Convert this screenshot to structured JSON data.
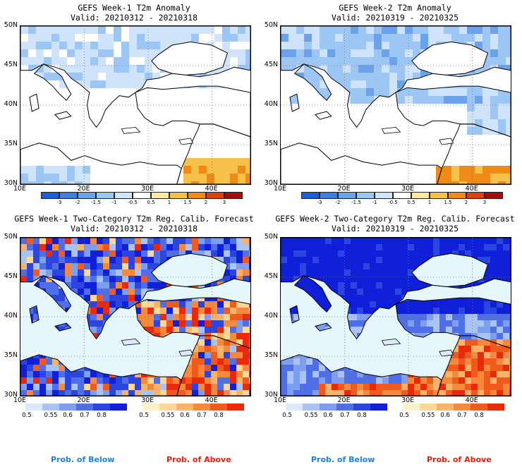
{
  "panels": [
    {
      "title": "GEFS Week-1 T2m Anomaly",
      "valid": "Valid: 20210312 - 20210318",
      "type": "anomaly"
    },
    {
      "title": "GEFS Week-2 T2m Anomaly",
      "valid": "Valid: 20210319 - 20210325",
      "type": "anomaly"
    },
    {
      "title": "GEFS Week-1 Two-Category T2m Reg. Calib. Forecast",
      "valid": "Valid: 20210312 - 20210318",
      "type": "prob"
    },
    {
      "title": "GEFS Week-2 Two-Category T2m Reg. Calib. Forecast",
      "valid": "Valid: 20210319 - 20210325",
      "type": "prob"
    }
  ],
  "lat_labels": [
    "50N",
    "45N",
    "40N",
    "35N",
    "30N"
  ],
  "lon_labels": [
    "10E",
    "20E",
    "30E",
    "40E"
  ],
  "anomaly_scale": {
    "labels": [
      "-3",
      "-2",
      "-1.5",
      "-1",
      "-0.5",
      "0.5",
      "1",
      "1.5",
      "2",
      "3"
    ],
    "colors": [
      "#1f5fcf",
      "#3f7fe0",
      "#6aa3ec",
      "#9cc6f4",
      "#cfe4fa",
      "#ffffff",
      "#fde9a6",
      "#f6c14a",
      "#f08a16",
      "#d8420f",
      "#a01008"
    ]
  },
  "prob_below": {
    "labels": [
      "0.5",
      "0.55",
      "0.6",
      "0.7",
      "0.8"
    ],
    "colors": [
      "#dce9fb",
      "#a9c4f3",
      "#7e9ef0",
      "#4f6fe8",
      "#2a45e0",
      "#1020d8"
    ],
    "caption": "Prob. of Below",
    "caption_color": "#1e7fe8"
  },
  "prob_above": {
    "labels": [
      "0.5",
      "0.55",
      "0.6",
      "0.7",
      "0.8"
    ],
    "colors": [
      "#fff1c8",
      "#fdd898",
      "#fbb36a",
      "#f68a3c",
      "#f05a1c",
      "#e82a0a"
    ],
    "caption": "Prob. of Above",
    "caption_color": "#e81e0a"
  },
  "colors": {
    "sea_light": "#e6f7fb",
    "land_white": "#ffffff"
  }
}
